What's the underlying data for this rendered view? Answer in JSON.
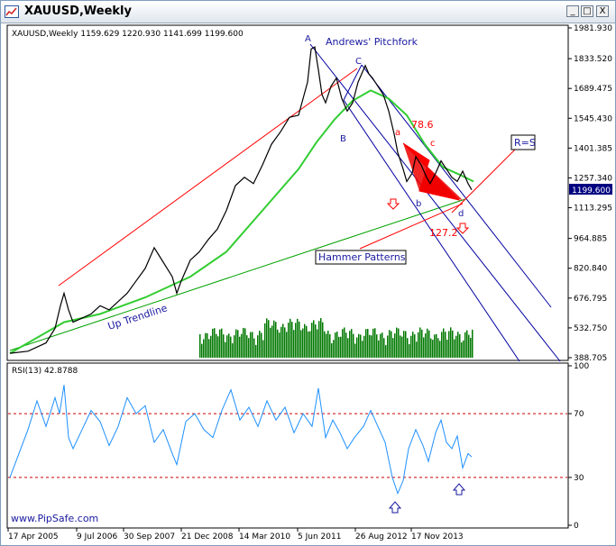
{
  "window": {
    "title": "XAUUSD,Weekly",
    "buttons": {
      "minimize": "_",
      "maximize": "□",
      "close": "X"
    }
  },
  "chart_data": [
    {
      "type": "line",
      "name": "price",
      "info_line": "XAUUSD,Weekly  1159.629 1220.930 1141.699 1199.600",
      "price_tag": "1199.600",
      "y_ticks": [
        "1981.930",
        "1833.520",
        "1689.475",
        "1545.430",
        "1401.385",
        "1257.340",
        "1113.295",
        "964.885",
        "820.840",
        "676.795",
        "532.750",
        "388.705"
      ],
      "ylim": [
        388.705,
        1981.93
      ],
      "x_ticks": [
        "17 Apr 2005",
        "9 Jul 2006",
        "30 Sep 2007",
        "21 Dec 2008",
        "14 Mar 2010",
        "5 Jun 2011",
        "26 Aug 2012",
        "17 Nov 2013"
      ],
      "price_points": [
        [
          0,
          410
        ],
        [
          20,
          420
        ],
        [
          40,
          460
        ],
        [
          50,
          530
        ],
        [
          56,
          640
        ],
        [
          60,
          700
        ],
        [
          65,
          620
        ],
        [
          70,
          560
        ],
        [
          80,
          580
        ],
        [
          90,
          600
        ],
        [
          100,
          640
        ],
        [
          110,
          620
        ],
        [
          120,
          660
        ],
        [
          130,
          700
        ],
        [
          140,
          760
        ],
        [
          150,
          820
        ],
        [
          160,
          920
        ],
        [
          170,
          850
        ],
        [
          180,
          780
        ],
        [
          185,
          700
        ],
        [
          190,
          760
        ],
        [
          200,
          860
        ],
        [
          210,
          900
        ],
        [
          220,
          960
        ],
        [
          230,
          1010
        ],
        [
          240,
          1100
        ],
        [
          250,
          1220
        ],
        [
          260,
          1260
        ],
        [
          270,
          1230
        ],
        [
          280,
          1320
        ],
        [
          290,
          1420
        ],
        [
          300,
          1480
        ],
        [
          310,
          1550
        ],
        [
          320,
          1560
        ],
        [
          330,
          1720
        ],
        [
          334,
          1880
        ],
        [
          338,
          1890
        ],
        [
          342,
          1780
        ],
        [
          346,
          1660
        ],
        [
          350,
          1620
        ],
        [
          356,
          1700
        ],
        [
          362,
          1740
        ],
        [
          368,
          1640
        ],
        [
          374,
          1580
        ],
        [
          380,
          1620
        ],
        [
          386,
          1720
        ],
        [
          390,
          1760
        ],
        [
          394,
          1800
        ],
        [
          398,
          1760
        ],
        [
          402,
          1740
        ],
        [
          408,
          1700
        ],
        [
          414,
          1660
        ],
        [
          420,
          1580
        ],
        [
          426,
          1470
        ],
        [
          430,
          1380
        ],
        [
          436,
          1300
        ],
        [
          440,
          1240
        ],
        [
          446,
          1280
        ],
        [
          450,
          1360
        ],
        [
          456,
          1320
        ],
        [
          462,
          1260
        ],
        [
          466,
          1230
        ],
        [
          472,
          1280
        ],
        [
          478,
          1340
        ],
        [
          484,
          1300
        ],
        [
          490,
          1260
        ],
        [
          496,
          1240
        ],
        [
          502,
          1290
        ],
        [
          508,
          1230
        ],
        [
          512,
          1199.6
        ]
      ],
      "ma_points": [
        [
          0,
          410
        ],
        [
          60,
          560
        ],
        [
          100,
          600
        ],
        [
          150,
          680
        ],
        [
          200,
          780
        ],
        [
          240,
          900
        ],
        [
          280,
          1100
        ],
        [
          320,
          1300
        ],
        [
          340,
          1430
        ],
        [
          360,
          1540
        ],
        [
          380,
          1630
        ],
        [
          400,
          1680
        ],
        [
          420,
          1640
        ],
        [
          440,
          1560
        ],
        [
          460,
          1420
        ],
        [
          480,
          1310
        ],
        [
          500,
          1270
        ],
        [
          514,
          1240
        ]
      ],
      "annotations": {
        "pitchfork": "Andrews' Pitchfork",
        "A": "A",
        "B": "B",
        "C": "C",
        "a": "a",
        "b": "b",
        "c": "c",
        "d": "d",
        "fib_786": "78.6",
        "fib_1272": "127.2",
        "rs": "R=S",
        "hammer": "Hammer Patterns",
        "trendline": "Up Trendline"
      },
      "colors": {
        "price": "#000000",
        "ma": "#32cd32",
        "volume": "#007800",
        "channel": "#ff0000",
        "pitchfork": "#0000a0",
        "trend": "#00a000",
        "pattern": "#ff0000"
      }
    },
    {
      "type": "line",
      "name": "rsi",
      "label": "RSI(13) 42.8788",
      "y_ticks": [
        "100",
        "70",
        "30",
        "0"
      ],
      "levels": [
        70,
        30
      ],
      "ylim": [
        0,
        100
      ],
      "points": [
        [
          0,
          30
        ],
        [
          10,
          45
        ],
        [
          20,
          60
        ],
        [
          30,
          78
        ],
        [
          40,
          62
        ],
        [
          50,
          80
        ],
        [
          55,
          70
        ],
        [
          60,
          88
        ],
        [
          65,
          55
        ],
        [
          70,
          48
        ],
        [
          80,
          60
        ],
        [
          90,
          72
        ],
        [
          100,
          65
        ],
        [
          110,
          50
        ],
        [
          120,
          62
        ],
        [
          130,
          80
        ],
        [
          140,
          70
        ],
        [
          150,
          75
        ],
        [
          160,
          52
        ],
        [
          170,
          60
        ],
        [
          180,
          45
        ],
        [
          185,
          38
        ],
        [
          195,
          65
        ],
        [
          205,
          70
        ],
        [
          215,
          60
        ],
        [
          225,
          55
        ],
        [
          235,
          72
        ],
        [
          245,
          85
        ],
        [
          255,
          66
        ],
        [
          265,
          74
        ],
        [
          275,
          62
        ],
        [
          285,
          78
        ],
        [
          295,
          66
        ],
        [
          305,
          74
        ],
        [
          315,
          58
        ],
        [
          325,
          70
        ],
        [
          335,
          62
        ],
        [
          342,
          86
        ],
        [
          350,
          55
        ],
        [
          358,
          66
        ],
        [
          366,
          58
        ],
        [
          374,
          48
        ],
        [
          382,
          55
        ],
        [
          392,
          62
        ],
        [
          400,
          72
        ],
        [
          408,
          62
        ],
        [
          416,
          52
        ],
        [
          424,
          30
        ],
        [
          430,
          20
        ],
        [
          436,
          28
        ],
        [
          442,
          48
        ],
        [
          450,
          60
        ],
        [
          458,
          50
        ],
        [
          464,
          40
        ],
        [
          472,
          58
        ],
        [
          478,
          66
        ],
        [
          484,
          52
        ],
        [
          490,
          48
        ],
        [
          496,
          56
        ],
        [
          502,
          36
        ],
        [
          508,
          45
        ],
        [
          512,
          42.8788
        ]
      ]
    }
  ],
  "watermark": "www.PipSafe.com"
}
